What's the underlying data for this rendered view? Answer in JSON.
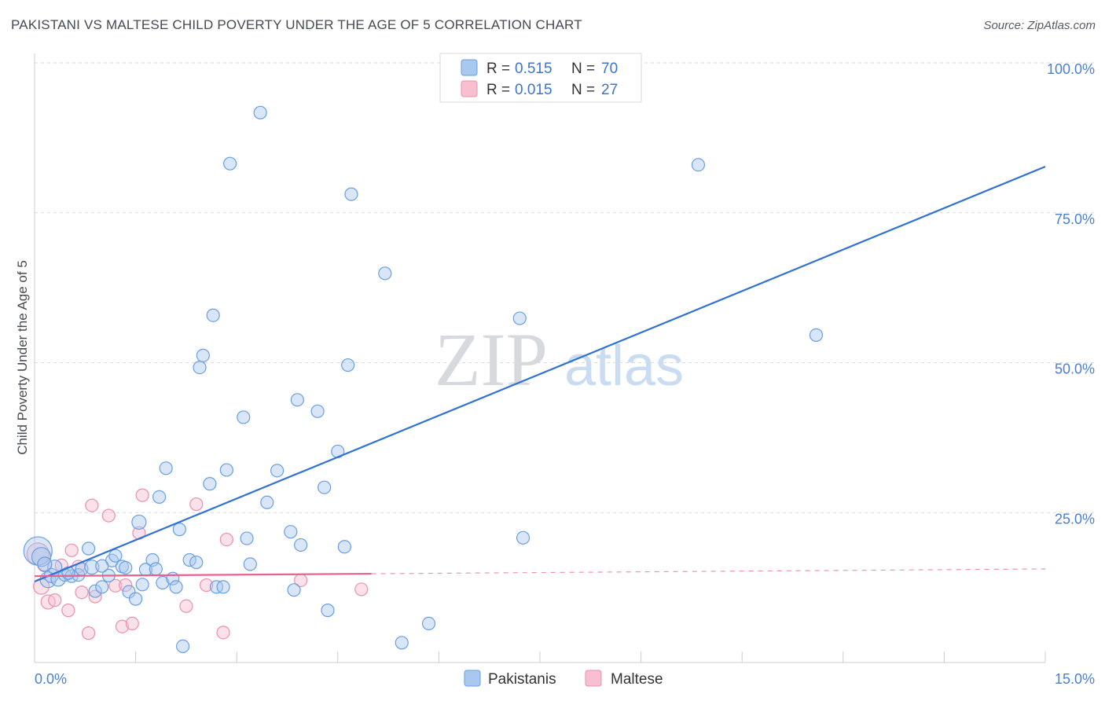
{
  "title": "PAKISTANI VS MALTESE CHILD POVERTY UNDER THE AGE OF 5 CORRELATION CHART",
  "source": "Source: ZipAtlas.com",
  "watermark": {
    "zip": "ZIP",
    "atlas": "atlas"
  },
  "legend": {
    "r_label": "R =",
    "n_label": "N =",
    "rows": [
      {
        "series": "Pakistanis",
        "r": "0.515",
        "n": "70"
      },
      {
        "series": "Maltese",
        "r": "0.015",
        "n": "27"
      }
    ]
  },
  "bottom_legend": [
    "Pakistanis",
    "Maltese"
  ],
  "colors": {
    "pak_fill": "#a8c8f0",
    "pak_stroke": "#6a9ee0",
    "pak_line": "#2f72d4",
    "mal_fill": "#f7bfd0",
    "mal_stroke": "#e890ad",
    "mal_line": "#e8628e",
    "grid": "#d8dbe0",
    "axis_text": "#4a7fd0"
  },
  "chart_data": {
    "type": "scatter",
    "title": "PAKISTANI VS MALTESE CHILD POVERTY UNDER THE AGE OF 5 CORRELATION CHART",
    "xlabel": "",
    "ylabel": "Child Poverty Under the Age of 5",
    "xlim": [
      0,
      15
    ],
    "ylim": [
      0,
      100
    ],
    "x_tick_labels": [
      "0.0%",
      "15.0%"
    ],
    "y_ticks": [
      25,
      50,
      75,
      100
    ],
    "y_tick_labels": [
      "25.0%",
      "50.0%",
      "75.0%",
      "100.0%"
    ],
    "grid": true,
    "series": [
      {
        "name": "Pakistanis",
        "r": 0.515,
        "n": 70,
        "trend": {
          "x": [
            0,
            15
          ],
          "y": [
            13.5,
            82.7
          ]
        },
        "points": [
          [
            0.05,
            18.6,
            18
          ],
          [
            0.1,
            17.6,
            12
          ],
          [
            0.2,
            13.8,
            10
          ],
          [
            0.25,
            14.5,
            9
          ],
          [
            0.3,
            15.9,
            9
          ],
          [
            0.35,
            13.9,
            9
          ],
          [
            0.45,
            14.6,
            8
          ],
          [
            0.55,
            14.4,
            8
          ],
          [
            0.65,
            14.6,
            8
          ],
          [
            0.7,
            15.6,
            8
          ],
          [
            0.8,
            19.0,
            8
          ],
          [
            0.85,
            15.9,
            9
          ],
          [
            0.9,
            11.9,
            8
          ],
          [
            1.0,
            12.6,
            8
          ],
          [
            1.1,
            14.5,
            8
          ],
          [
            1.15,
            17.0,
            8
          ],
          [
            1.2,
            17.8,
            8
          ],
          [
            1.3,
            16.0,
            8
          ],
          [
            1.35,
            15.8,
            8
          ],
          [
            1.4,
            11.8,
            8
          ],
          [
            1.5,
            10.6,
            8
          ],
          [
            1.55,
            23.4,
            9
          ],
          [
            1.6,
            13.0,
            8
          ],
          [
            1.65,
            15.5,
            8
          ],
          [
            1.75,
            17.1,
            8
          ],
          [
            1.8,
            15.6,
            8
          ],
          [
            1.85,
            27.6,
            8
          ],
          [
            1.9,
            13.3,
            8
          ],
          [
            1.95,
            32.4,
            8
          ],
          [
            2.05,
            14.0,
            8
          ],
          [
            2.1,
            12.6,
            8
          ],
          [
            2.15,
            22.2,
            8
          ],
          [
            2.2,
            2.7,
            8
          ],
          [
            2.3,
            17.1,
            8
          ],
          [
            2.4,
            16.7,
            8
          ],
          [
            2.45,
            49.2,
            8
          ],
          [
            2.5,
            51.2,
            8
          ],
          [
            2.6,
            29.8,
            8
          ],
          [
            2.65,
            57.9,
            8
          ],
          [
            2.7,
            12.6,
            8
          ],
          [
            2.8,
            12.6,
            8
          ],
          [
            2.85,
            32.1,
            8
          ],
          [
            2.9,
            83.2,
            8
          ],
          [
            3.1,
            40.9,
            8
          ],
          [
            3.15,
            20.7,
            8
          ],
          [
            3.2,
            16.4,
            8
          ],
          [
            3.35,
            91.7,
            8
          ],
          [
            3.45,
            26.7,
            8
          ],
          [
            3.6,
            32.0,
            8
          ],
          [
            3.8,
            21.8,
            8
          ],
          [
            3.85,
            12.1,
            8
          ],
          [
            3.9,
            43.8,
            8
          ],
          [
            3.95,
            19.6,
            8
          ],
          [
            4.2,
            41.9,
            8
          ],
          [
            4.3,
            29.2,
            8
          ],
          [
            4.35,
            8.7,
            8
          ],
          [
            4.5,
            35.2,
            8
          ],
          [
            4.6,
            19.3,
            8
          ],
          [
            4.65,
            49.6,
            8
          ],
          [
            4.7,
            78.1,
            8
          ],
          [
            5.2,
            64.9,
            8
          ],
          [
            5.45,
            3.3,
            8
          ],
          [
            5.85,
            6.5,
            8
          ],
          [
            7.2,
            57.4,
            8
          ],
          [
            7.25,
            20.8,
            8
          ],
          [
            9.85,
            83.0,
            8
          ],
          [
            11.6,
            54.6,
            8
          ],
          [
            0.15,
            16.4,
            9
          ],
          [
            0.5,
            14.9,
            8
          ],
          [
            1.0,
            16.1,
            8
          ]
        ]
      },
      {
        "name": "Maltese",
        "r": 0.015,
        "n": 27,
        "trend": {
          "x": [
            0,
            15
          ],
          "y": [
            14.4,
            15.6
          ]
        },
        "points": [
          [
            0.05,
            18.1,
            14
          ],
          [
            0.1,
            12.7,
            10
          ],
          [
            0.15,
            16.3,
            9
          ],
          [
            0.2,
            10.1,
            9
          ],
          [
            0.3,
            10.4,
            8
          ],
          [
            0.4,
            16.2,
            8
          ],
          [
            0.5,
            8.7,
            8
          ],
          [
            0.55,
            18.7,
            8
          ],
          [
            0.65,
            16.0,
            8
          ],
          [
            0.7,
            11.7,
            8
          ],
          [
            0.8,
            4.9,
            8
          ],
          [
            0.85,
            26.2,
            8
          ],
          [
            0.9,
            11.0,
            8
          ],
          [
            1.1,
            24.5,
            8
          ],
          [
            1.2,
            12.8,
            8
          ],
          [
            1.3,
            6.0,
            8
          ],
          [
            1.35,
            12.9,
            8
          ],
          [
            1.45,
            6.5,
            8
          ],
          [
            1.55,
            21.6,
            8
          ],
          [
            1.6,
            27.9,
            8
          ],
          [
            2.25,
            9.4,
            8
          ],
          [
            2.4,
            26.4,
            8
          ],
          [
            2.55,
            12.9,
            8
          ],
          [
            2.8,
            5.0,
            8
          ],
          [
            2.85,
            20.5,
            8
          ],
          [
            3.95,
            13.7,
            8
          ],
          [
            4.85,
            12.2,
            8
          ]
        ]
      }
    ]
  }
}
